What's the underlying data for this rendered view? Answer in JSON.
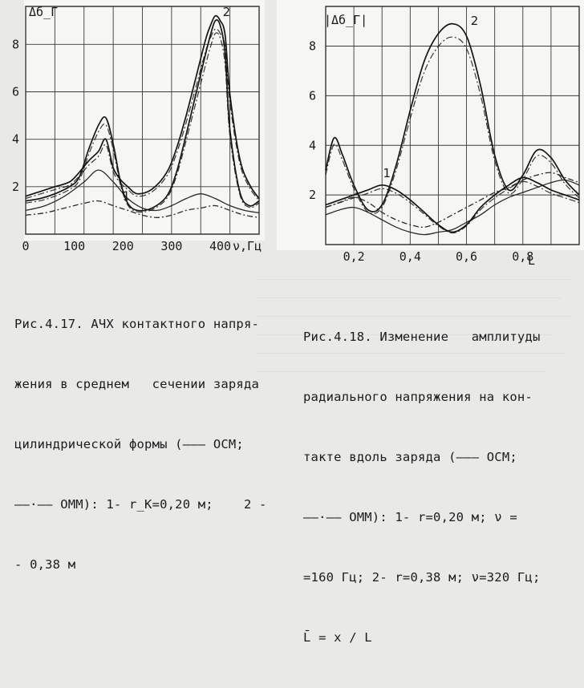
{
  "chart_data": [
    {
      "type": "line",
      "ylabel": "Δб_Г",
      "xlabel": "ν,Гц",
      "x_ticks": [
        "0",
        "100",
        "200",
        "300",
        "400"
      ],
      "y_ticks": [
        "2",
        "4",
        "6",
        "8"
      ],
      "xlim": [
        0,
        480
      ],
      "ylim": [
        0,
        9.6
      ],
      "series": [
        {
          "name": "1",
          "x": [
            0,
            30,
            60,
            90,
            110,
            130,
            150,
            165,
            180,
            195,
            210,
            230,
            260,
            290,
            310,
            330,
            350,
            370,
            380,
            390,
            400,
            410,
            420,
            440,
            460,
            480
          ],
          "values": [
            1.6,
            1.8,
            2.0,
            2.2,
            2.6,
            3.1,
            3.5,
            4.0,
            2.8,
            2.3,
            2.0,
            1.7,
            1.9,
            2.6,
            3.6,
            5.0,
            6.6,
            8.2,
            8.8,
            9.2,
            9.0,
            8.4,
            5.9,
            3.2,
            2.1,
            1.5
          ]
        },
        {
          "name": "2",
          "x": [
            0,
            30,
            60,
            90,
            110,
            130,
            150,
            165,
            180,
            195,
            210,
            230,
            260,
            290,
            310,
            330,
            350,
            370,
            380,
            390,
            400,
            410,
            420,
            440,
            460,
            480
          ],
          "values": [
            1.4,
            1.5,
            1.7,
            2.0,
            2.4,
            3.6,
            4.6,
            4.9,
            3.8,
            2.2,
            1.3,
            1.0,
            1.1,
            1.6,
            2.6,
            4.2,
            5.9,
            7.6,
            8.4,
            9.0,
            8.8,
            7.6,
            4.4,
            1.8,
            1.2,
            1.4
          ]
        }
      ],
      "lower_curves": [
        {
          "x": [
            0,
            40,
            80,
            120,
            150,
            180,
            210,
            240,
            270,
            300,
            330,
            360,
            390,
            420,
            450,
            480
          ],
          "values": [
            1.0,
            1.2,
            1.6,
            2.2,
            2.7,
            2.2,
            1.5,
            1.1,
            1.0,
            1.2,
            1.5,
            1.7,
            1.5,
            1.2,
            1.0,
            0.9
          ]
        },
        {
          "x": [
            0,
            40,
            80,
            120,
            150,
            180,
            210,
            240,
            270,
            300,
            330,
            360,
            390,
            420,
            450,
            480
          ],
          "values": [
            0.8,
            0.9,
            1.1,
            1.3,
            1.4,
            1.2,
            1.0,
            0.8,
            0.7,
            0.8,
            1.0,
            1.1,
            1.2,
            1.0,
            0.8,
            0.7
          ]
        }
      ]
    },
    {
      "type": "line",
      "ylabel": "|Δб_Г|",
      "xlabel": "L",
      "x_ticks": [
        "0,2",
        "0,4",
        "0,6",
        "0,8"
      ],
      "y_ticks": [
        "2",
        "4",
        "6",
        "8"
      ],
      "xlim": [
        0.1,
        1.0
      ],
      "ylim": [
        0,
        9.6
      ],
      "series": [
        {
          "name": "1",
          "x": [
            0.1,
            0.15,
            0.2,
            0.25,
            0.3,
            0.35,
            0.4,
            0.45,
            0.5,
            0.55,
            0.6,
            0.65,
            0.7,
            0.75,
            0.8,
            0.85,
            0.9,
            0.95,
            1.0
          ],
          "values": [
            1.6,
            1.8,
            2.0,
            2.2,
            2.4,
            2.2,
            1.8,
            1.3,
            0.8,
            0.5,
            0.8,
            1.5,
            2.0,
            2.4,
            2.7,
            2.5,
            2.2,
            2.0,
            1.8
          ]
        },
        {
          "name": "2",
          "x": [
            0.1,
            0.13,
            0.16,
            0.2,
            0.25,
            0.3,
            0.35,
            0.4,
            0.45,
            0.5,
            0.55,
            0.6,
            0.65,
            0.7,
            0.75,
            0.8,
            0.85,
            0.9,
            0.95,
            1.0
          ],
          "values": [
            3.0,
            4.3,
            3.6,
            2.4,
            1.4,
            1.6,
            3.2,
            5.4,
            7.4,
            8.5,
            8.9,
            8.4,
            6.4,
            3.6,
            2.2,
            2.8,
            3.8,
            3.5,
            2.6,
            2.0
          ]
        }
      ],
      "lower_curves": [
        {
          "x": [
            0.1,
            0.15,
            0.2,
            0.25,
            0.3,
            0.35,
            0.4,
            0.45,
            0.5,
            0.55,
            0.6,
            0.65,
            0.7,
            0.75,
            0.8,
            0.85,
            0.9,
            0.95,
            1.0
          ],
          "values": [
            1.2,
            1.4,
            1.5,
            1.3,
            1.0,
            0.7,
            0.5,
            0.4,
            0.5,
            0.6,
            0.9,
            1.2,
            1.6,
            1.9,
            2.1,
            2.3,
            2.5,
            2.6,
            2.4
          ]
        },
        {
          "x": [
            0.1,
            0.15,
            0.2,
            0.25,
            0.3,
            0.35,
            0.4,
            0.45,
            0.5,
            0.55,
            0.6,
            0.65,
            0.7,
            0.75,
            0.8,
            0.85,
            0.9,
            0.95,
            1.0
          ],
          "values": [
            1.5,
            1.7,
            1.9,
            1.7,
            1.3,
            1.0,
            0.8,
            0.7,
            0.9,
            1.2,
            1.5,
            1.8,
            2.1,
            2.3,
            2.6,
            2.8,
            2.9,
            2.7,
            2.5
          ]
        }
      ]
    }
  ],
  "captions": {
    "fig417": [
      "Рис.4.17. АЧХ контактного напря-",
      "жения в среднем   сечении заряда",
      "цилиндрической формы (——— ОСМ;",
      "——·—— ОММ): 1- r_К=0,20 м;    2 -",
      "- 0,38 м"
    ],
    "fig418": [
      "Рис.4.18. Изменение   амплитуды",
      "радиального напряжения на кон-",
      "такте вдоль заряда (——— ОСМ;",
      "——·—— ОММ): 1- r=0,20 м; ν =",
      "=160 Гц; 2- r=0,38 м; ν=320 Гц;",
      "L̄ = x / L"
    ]
  }
}
